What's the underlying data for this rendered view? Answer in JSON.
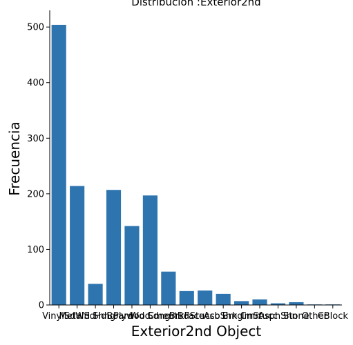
{
  "chart_data": {
    "type": "bar",
    "title": "Distribución :Exterior2nd",
    "xlabel": "Exterior2nd Object",
    "ylabel": "Frecuencia",
    "ylim": [
      0,
      530
    ],
    "yticks": [
      0,
      100,
      200,
      300,
      400,
      500
    ],
    "grid": false,
    "bar_color": "#2e75b0",
    "categories": [
      "VinylSd",
      "MetalSd",
      "Wd Shng",
      "HdBoard",
      "Plywood",
      "Wd Sdng",
      "CmentBd",
      "BrkFace",
      "Stucco",
      "AsbShng",
      "Brk Cmn",
      "ImStucc",
      "AsphShn",
      "Stone",
      "Other",
      "CBlock"
    ],
    "values": [
      504,
      214,
      38,
      207,
      142,
      197,
      60,
      25,
      26,
      20,
      7,
      10,
      3,
      5,
      1,
      1
    ]
  }
}
